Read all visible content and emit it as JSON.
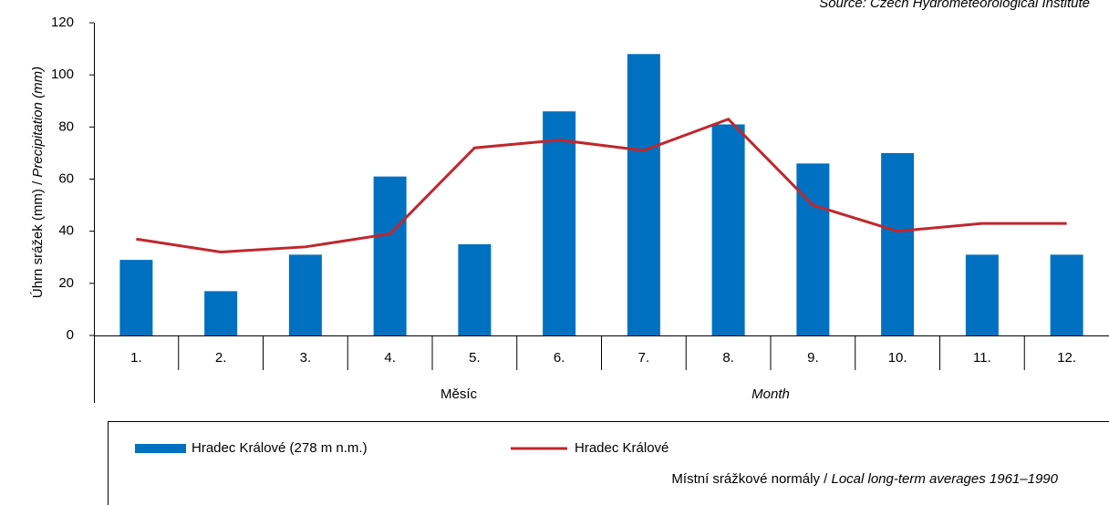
{
  "chart_data": {
    "type": "bar",
    "source": "Source: Czech Hydrometeorological Institute",
    "y_label": "Úhrn srážek (mm) / ",
    "y_label_en": "Precipitation (mm)",
    "x_label": "Měsíc",
    "x_label_en": "Month",
    "note": "Místní srážkové normály / ",
    "note_en": "Local long-term averages 1961–1990",
    "categories": [
      "1.",
      "2.",
      "3.",
      "4.",
      "5.",
      "6.",
      "7.",
      "8.",
      "9.",
      "10.",
      "11.",
      "12."
    ],
    "series": [
      {
        "name": "Hradec Králové (278 m n.m.)",
        "type": "bar",
        "color": "#0070c0",
        "values": [
          29,
          17,
          31,
          61,
          35,
          86,
          108,
          81,
          66,
          70,
          31,
          31
        ]
      },
      {
        "name": "Hradec Králové",
        "type": "line",
        "color": "#c0272d",
        "values": [
          37,
          32,
          34,
          39,
          72,
          75,
          71,
          83,
          50,
          40,
          43,
          43
        ]
      }
    ],
    "ylim": [
      0,
      120
    ],
    "yticks": [
      0,
      20,
      40,
      60,
      80,
      100,
      120
    ],
    "grid": false
  }
}
